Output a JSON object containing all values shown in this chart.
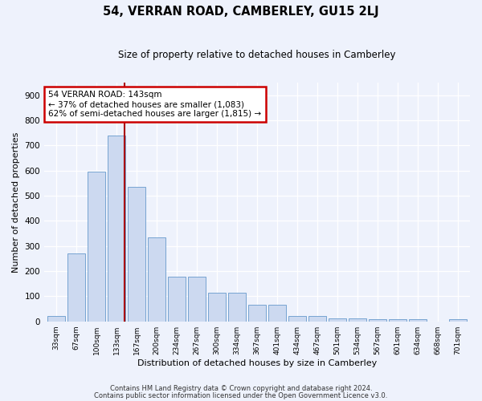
{
  "title": "54, VERRAN ROAD, CAMBERLEY, GU15 2LJ",
  "subtitle": "Size of property relative to detached houses in Camberley",
  "xlabel": "Distribution of detached houses by size in Camberley",
  "ylabel": "Number of detached properties",
  "bar_values": [
    22,
    270,
    595,
    740,
    535,
    335,
    178,
    178,
    115,
    115,
    67,
    67,
    22,
    22,
    13,
    13,
    8,
    8,
    8,
    0,
    8
  ],
  "bin_labels": [
    "33sqm",
    "67sqm",
    "100sqm",
    "133sqm",
    "167sqm",
    "200sqm",
    "234sqm",
    "267sqm",
    "300sqm",
    "334sqm",
    "367sqm",
    "401sqm",
    "434sqm",
    "467sqm",
    "501sqm",
    "534sqm",
    "567sqm",
    "601sqm",
    "634sqm",
    "668sqm",
    "701sqm"
  ],
  "bar_color": "#ccd9f0",
  "bar_edge_color": "#6699cc",
  "annotation_text": "54 VERRAN ROAD: 143sqm\n← 37% of detached houses are smaller (1,083)\n62% of semi-detached houses are larger (1,815) →",
  "annotation_box_color": "#ffffff",
  "annotation_box_edge": "#cc0000",
  "vline_color": "#aa0000",
  "vline_x_bin": 3,
  "ylim": [
    0,
    950
  ],
  "yticks": [
    0,
    100,
    200,
    300,
    400,
    500,
    600,
    700,
    800,
    900
  ],
  "footer1": "Contains HM Land Registry data © Crown copyright and database right 2024.",
  "footer2": "Contains public sector information licensed under the Open Government Licence v3.0.",
  "bg_color": "#eef2fc",
  "grid_color": "#ffffff",
  "num_bins": 21,
  "title_fontsize": 10.5,
  "subtitle_fontsize": 8.5,
  "ylabel_fontsize": 8,
  "xlabel_fontsize": 8,
  "annotation_fontsize": 7.5,
  "footer_fontsize": 6
}
